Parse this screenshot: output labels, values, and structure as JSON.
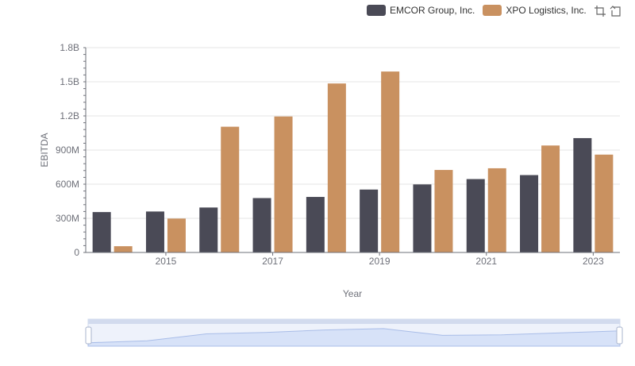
{
  "legend": {
    "items": [
      {
        "label": "EMCOR Group, Inc.",
        "color": "#4a4a56"
      },
      {
        "label": "XPO Logistics, Inc.",
        "color": "#c99160"
      }
    ]
  },
  "toolbar": {
    "icons": [
      "zoom-area-icon",
      "restore-icon"
    ]
  },
  "chart_data": {
    "type": "bar",
    "categories": [
      "2014",
      "2015",
      "2016",
      "2017",
      "2018",
      "2019",
      "2020",
      "2021",
      "2022",
      "2023"
    ],
    "x_tick_labels": [
      "2015",
      "2017",
      "2019",
      "2021",
      "2023"
    ],
    "series": [
      {
        "name": "EMCOR Group, Inc.",
        "color": "#4a4a56",
        "values": [
          355000000,
          360000000,
          395000000,
          478000000,
          488000000,
          553000000,
          598000000,
          645000000,
          680000000,
          1005000000
        ]
      },
      {
        "name": "XPO Logistics, Inc.",
        "color": "#c99160",
        "values": [
          55000000,
          298000000,
          1105000000,
          1195000000,
          1485000000,
          1590000000,
          725000000,
          740000000,
          940000000,
          860000000
        ]
      }
    ],
    "ylabel": "EBITDA",
    "xlabel": "Year",
    "ylim": [
      0,
      1800000000
    ],
    "y_ticks": [
      0,
      300000000,
      600000000,
      900000000,
      1200000000,
      1500000000,
      1800000000
    ],
    "y_tick_labels": [
      "0",
      "300M",
      "600M",
      "900M",
      "1.2B",
      "1.5B",
      "1.8B"
    ],
    "grid": true,
    "legend_position": "top-right",
    "data_zoom": {
      "range_percent": [
        0,
        100
      ]
    }
  }
}
